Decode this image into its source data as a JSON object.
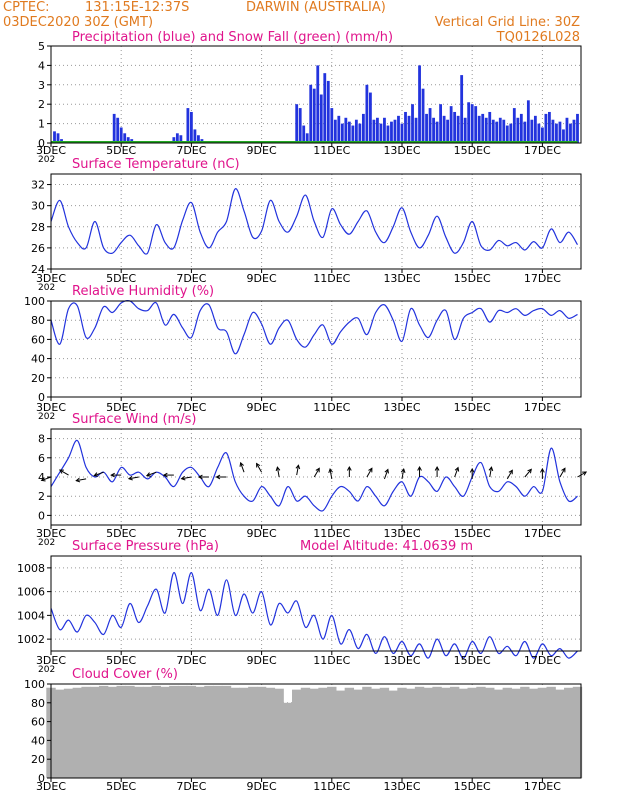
{
  "header": {
    "source": "CPTEC:",
    "coords": "131:15E-12:37S",
    "location": "DARWIN (AUSTRALIA)",
    "run": "03DEC2020 30Z (GMT)",
    "grid_note": "Vertical Grid Line: 30Z",
    "code": "TQ0126L028",
    "color": "#e07a1f"
  },
  "x_axis": {
    "domain": [
      3,
      18.1
    ],
    "tick_labels": [
      {
        "label": "3DEC",
        "day": 3
      },
      {
        "label": "5DEC",
        "day": 5
      },
      {
        "label": "7DEC",
        "day": 7
      },
      {
        "label": "9DEC",
        "day": 9
      },
      {
        "label": "11DEC",
        "day": 11
      },
      {
        "label": "13DEC",
        "day": 13
      },
      {
        "label": "15DEC",
        "day": 15
      },
      {
        "label": "17DEC",
        "day": 17
      }
    ],
    "year_fragment": "202"
  },
  "colors": {
    "title": "#e0148c",
    "line": "#2233dd",
    "bar": "#2233dd",
    "snow": "#22aa22",
    "cloud": "#b0b0b0",
    "grid": "#999999"
  },
  "chart_data": [
    {
      "id": "precip",
      "type": "bar",
      "title": "Precipitation (blue) and Snow Fall (green) (mm/h)",
      "ylim": [
        0,
        5
      ],
      "yticks": [
        0,
        1,
        2,
        3,
        4,
        5
      ],
      "series": [
        {
          "name": "Precipitation",
          "x": [
            3.1,
            3.2,
            3.3,
            4.4,
            4.8,
            4.9,
            5.0,
            5.1,
            5.2,
            5.3,
            6.5,
            6.6,
            6.7,
            6.9,
            7.0,
            7.1,
            7.2,
            7.3,
            10.0,
            10.1,
            10.2,
            10.3,
            10.4,
            10.5,
            10.6,
            10.7,
            10.8,
            10.9,
            11.0,
            11.1,
            11.2,
            11.3,
            11.4,
            11.5,
            11.6,
            11.7,
            11.8,
            11.9,
            12.0,
            12.1,
            12.2,
            12.3,
            12.4,
            12.5,
            12.6,
            12.7,
            12.8,
            12.9,
            13.0,
            13.1,
            13.2,
            13.3,
            13.4,
            13.5,
            13.6,
            13.7,
            13.8,
            13.9,
            14.0,
            14.1,
            14.2,
            14.3,
            14.4,
            14.5,
            14.6,
            14.7,
            14.8,
            14.9,
            15.0,
            15.1,
            15.2,
            15.3,
            15.4,
            15.5,
            15.6,
            15.7,
            15.8,
            15.9,
            16.0,
            16.1,
            16.2,
            16.3,
            16.4,
            16.5,
            16.6,
            16.7,
            16.8,
            16.9,
            17.0,
            17.1,
            17.2,
            17.3,
            17.4,
            17.5,
            17.6,
            17.7,
            17.8,
            17.9,
            18.0
          ],
          "values": [
            0.6,
            0.5,
            0.2,
            0.1,
            1.5,
            1.3,
            0.8,
            0.5,
            0.3,
            0.2,
            0.3,
            0.5,
            0.4,
            1.8,
            1.6,
            0.7,
            0.4,
            0.2,
            2.0,
            1.8,
            0.9,
            0.5,
            3.0,
            2.8,
            4.0,
            2.5,
            3.6,
            3.2,
            1.8,
            1.2,
            1.4,
            1.0,
            1.3,
            1.1,
            0.9,
            1.2,
            1.0,
            1.5,
            3.0,
            2.6,
            1.2,
            1.3,
            1.0,
            1.3,
            0.9,
            1.1,
            1.2,
            1.4,
            1.0,
            1.6,
            1.4,
            2.0,
            1.3,
            4.0,
            2.8,
            1.5,
            1.8,
            1.3,
            1.1,
            2.0,
            1.4,
            1.2,
            1.9,
            1.6,
            1.4,
            3.5,
            1.3,
            2.1,
            2.0,
            1.9,
            1.4,
            1.5,
            1.3,
            1.6,
            1.2,
            1.1,
            1.3,
            1.2,
            0.9,
            1.0,
            1.8,
            1.3,
            1.5,
            1.1,
            2.2,
            1.2,
            1.4,
            1.0,
            0.8,
            1.5,
            1.6,
            1.2,
            1.0,
            1.1,
            0.7,
            1.3,
            1.0,
            1.2,
            1.5
          ]
        },
        {
          "name": "Snow Fall",
          "x": [
            3,
            18
          ],
          "values": [
            0,
            0
          ]
        }
      ]
    },
    {
      "id": "temp",
      "type": "line",
      "title": "Surface Temperature (nC)",
      "ylim": [
        24,
        33
      ],
      "yticks": [
        24,
        26,
        28,
        30,
        32
      ],
      "series": [
        {
          "name": "Temperature",
          "x": [
            3,
            3.25,
            3.5,
            3.75,
            4,
            4.25,
            4.5,
            4.75,
            5,
            5.25,
            5.5,
            5.75,
            6,
            6.25,
            6.5,
            6.75,
            7,
            7.25,
            7.5,
            7.75,
            8,
            8.25,
            8.5,
            8.75,
            9,
            9.25,
            9.5,
            9.75,
            10,
            10.25,
            10.5,
            10.75,
            11,
            11.25,
            11.5,
            11.75,
            12,
            12.25,
            12.5,
            12.75,
            13,
            13.25,
            13.5,
            13.75,
            14,
            14.25,
            14.5,
            14.75,
            15,
            15.25,
            15.5,
            15.75,
            16,
            16.25,
            16.5,
            16.75,
            17,
            17.25,
            17.5,
            17.75,
            18
          ],
          "values": [
            28.5,
            30.5,
            28,
            26.5,
            26,
            28.5,
            26,
            25.5,
            26.5,
            27.2,
            26.2,
            25.5,
            28.2,
            26.5,
            26,
            28.6,
            30.3,
            27.5,
            26,
            27.5,
            28.5,
            31.6,
            29.5,
            27,
            27.6,
            30.5,
            28.5,
            27.5,
            29,
            31,
            28.5,
            27,
            29.7,
            28.2,
            27.3,
            28.5,
            29.5,
            27.5,
            26.5,
            28,
            29.8,
            27.5,
            26,
            27.2,
            29,
            27,
            25.5,
            26.5,
            28.5,
            26.2,
            25.8,
            26.7,
            26.2,
            26.5,
            25.8,
            26.6,
            26,
            27.8,
            26.5,
            27.5,
            26.3
          ]
        }
      ]
    },
    {
      "id": "rh",
      "type": "line",
      "title": "Relative Humidity (%)",
      "ylim": [
        0,
        100
      ],
      "yticks": [
        0,
        20,
        40,
        60,
        80,
        100
      ],
      "series": [
        {
          "name": "Relative Humidity",
          "x": [
            3,
            3.25,
            3.5,
            3.75,
            4,
            4.25,
            4.5,
            4.75,
            5,
            5.25,
            5.5,
            5.75,
            6,
            6.25,
            6.5,
            6.75,
            7,
            7.25,
            7.5,
            7.75,
            8,
            8.25,
            8.5,
            8.75,
            9,
            9.25,
            9.5,
            9.75,
            10,
            10.25,
            10.5,
            10.75,
            11,
            11.25,
            11.5,
            11.75,
            12,
            12.25,
            12.5,
            12.75,
            13,
            13.25,
            13.5,
            13.75,
            14,
            14.25,
            14.5,
            14.75,
            15,
            15.25,
            15.5,
            15.75,
            16,
            16.25,
            16.5,
            16.75,
            17,
            17.25,
            17.5,
            17.75,
            18
          ],
          "values": [
            80,
            55,
            92,
            95,
            62,
            72,
            94,
            88,
            98,
            100,
            92,
            90,
            98,
            75,
            86,
            72,
            62,
            90,
            96,
            72,
            68,
            45,
            65,
            88,
            76,
            55,
            72,
            80,
            60,
            52,
            65,
            75,
            55,
            68,
            78,
            82,
            65,
            88,
            96,
            80,
            58,
            92,
            75,
            62,
            80,
            90,
            60,
            82,
            88,
            92,
            78,
            90,
            88,
            92,
            85,
            90,
            92,
            85,
            90,
            82,
            86
          ]
        }
      ]
    },
    {
      "id": "wind",
      "type": "line",
      "title": "Surface Wind (m/s)",
      "ylim": [
        -1,
        9
      ],
      "yticks": [
        0,
        2,
        4,
        6,
        8
      ],
      "series": [
        {
          "name": "Wind speed",
          "x": [
            3,
            3.25,
            3.5,
            3.75,
            4,
            4.25,
            4.5,
            4.75,
            5,
            5.25,
            5.5,
            5.75,
            6,
            6.25,
            6.5,
            6.75,
            7,
            7.25,
            7.5,
            7.75,
            8,
            8.25,
            8.5,
            8.75,
            9,
            9.25,
            9.5,
            9.75,
            10,
            10.25,
            10.5,
            10.75,
            11,
            11.25,
            11.5,
            11.75,
            12,
            12.25,
            12.5,
            12.75,
            13,
            13.25,
            13.5,
            13.75,
            14,
            14.25,
            14.5,
            14.75,
            15,
            15.25,
            15.5,
            15.75,
            16,
            16.25,
            16.5,
            16.75,
            17,
            17.25,
            17.5,
            17.75,
            18
          ],
          "values": [
            3,
            4.5,
            6,
            7.8,
            5,
            4,
            4.5,
            3.5,
            5,
            4.2,
            4.5,
            3.8,
            4.5,
            4,
            3,
            4.5,
            5,
            4,
            3,
            5,
            6.5,
            3.5,
            2,
            1.5,
            3,
            2,
            1,
            3,
            1.5,
            2,
            1,
            0.5,
            2,
            3,
            2.5,
            1.5,
            3,
            2,
            1,
            2.5,
            3.5,
            2,
            4,
            3.5,
            2.5,
            4,
            3,
            2,
            4,
            5.5,
            3,
            2.5,
            3.5,
            3,
            2,
            3,
            2.5,
            7,
            3.5,
            1.5,
            2
          ]
        }
      ]
    },
    {
      "id": "press",
      "type": "line",
      "title": "Surface Pressure (hPa)",
      "annotation": "Model Altitude: 41.0639 m",
      "ylim": [
        1001,
        1009
      ],
      "yticks": [
        1002,
        1004,
        1006,
        1008
      ],
      "series": [
        {
          "name": "Pressure",
          "x": [
            3,
            3.25,
            3.5,
            3.75,
            4,
            4.25,
            4.5,
            4.75,
            5,
            5.25,
            5.5,
            5.75,
            6,
            6.25,
            6.5,
            6.75,
            7,
            7.25,
            7.5,
            7.75,
            8,
            8.25,
            8.5,
            8.75,
            9,
            9.25,
            9.5,
            9.75,
            10,
            10.25,
            10.5,
            10.75,
            11,
            11.25,
            11.5,
            11.75,
            12,
            12.25,
            12.5,
            12.75,
            13,
            13.25,
            13.5,
            13.75,
            14,
            14.25,
            14.5,
            14.75,
            15,
            15.25,
            15.5,
            15.75,
            16,
            16.25,
            16.5,
            16.75,
            17,
            17.25,
            17.5,
            17.75,
            18
          ],
          "values": [
            1004.6,
            1002.8,
            1003.6,
            1002.6,
            1004,
            1003.4,
            1002.4,
            1004,
            1003,
            1005,
            1003.4,
            1004.8,
            1006.2,
            1004.2,
            1007.6,
            1005,
            1007.6,
            1004.4,
            1006.2,
            1004,
            1007,
            1004,
            1005.8,
            1004.2,
            1006,
            1003.2,
            1005,
            1004.2,
            1005.2,
            1003,
            1004,
            1002,
            1004,
            1001.6,
            1002.8,
            1001.2,
            1002.4,
            1000.8,
            1002.2,
            1000.8,
            1001.8,
            1000.6,
            1001.6,
            1000.4,
            1002,
            1000.6,
            1001.6,
            1000.4,
            1001.8,
            1000.8,
            1002.2,
            1000.8,
            1001.4,
            1000.6,
            1001.8,
            1000.4,
            1001.6,
            1000.6,
            1001.2,
            1000.4,
            1001
          ]
        }
      ]
    },
    {
      "id": "cloud",
      "type": "bar",
      "title": "Cloud Cover (%)",
      "ylim": [
        0,
        100
      ],
      "yticks": [
        0,
        20,
        40,
        60,
        80,
        100
      ],
      "series": [
        {
          "name": "Cloud Cover",
          "x": [
            3,
            3.25,
            3.5,
            3.75,
            4,
            4.25,
            4.5,
            4.75,
            5,
            5.25,
            5.5,
            5.75,
            6,
            6.25,
            6.5,
            6.75,
            7,
            7.25,
            7.5,
            7.75,
            8,
            8.25,
            8.5,
            8.75,
            9,
            9.25,
            9.5,
            9.75,
            10,
            10.25,
            10.5,
            10.75,
            11,
            11.25,
            11.5,
            11.75,
            12,
            12.25,
            12.5,
            12.75,
            13,
            13.25,
            13.5,
            13.75,
            14,
            14.25,
            14.5,
            14.75,
            15,
            15.25,
            15.5,
            15.75,
            16,
            16.25,
            16.5,
            16.75,
            17,
            17.25,
            17.5,
            17.75,
            18
          ],
          "values": [
            96,
            94,
            95,
            96,
            97,
            97,
            98,
            97,
            98,
            98,
            97,
            97,
            98,
            97,
            98,
            98,
            98,
            97,
            98,
            98,
            98,
            96,
            96,
            97,
            97,
            96,
            95,
            80,
            94,
            96,
            95,
            96,
            97,
            93,
            96,
            94,
            97,
            95,
            96,
            93,
            96,
            95,
            97,
            96,
            97,
            96,
            97,
            95,
            96,
            97,
            96,
            94,
            96,
            95,
            97,
            95,
            96,
            97,
            94,
            96,
            97
          ]
        }
      ]
    }
  ],
  "wind_vectors": {
    "x": [
      3,
      3.5,
      4,
      4.5,
      5,
      5.5,
      6,
      6.5,
      7,
      7.5,
      8,
      8.5,
      9,
      9.5,
      10,
      10.5,
      11,
      11.5,
      12,
      12.5,
      13,
      13.5,
      14,
      14.5,
      15,
      15.5,
      16,
      16.5,
      17,
      17.5,
      18
    ],
    "y": [
      4,
      4.2,
      3.8,
      4.5,
      4.2,
      4,
      4.5,
      4.2,
      4,
      4,
      4,
      4.5,
      4.5,
      4,
      4.2,
      4,
      3.8,
      4,
      4,
      3.8,
      3.8,
      4,
      4,
      4,
      3.8,
      4,
      3.8,
      4,
      3.8,
      4,
      4
    ],
    "angle": [
      200,
      150,
      190,
      200,
      180,
      190,
      200,
      180,
      190,
      180,
      180,
      110,
      120,
      100,
      80,
      60,
      100,
      90,
      60,
      70,
      80,
      90,
      90,
      70,
      90,
      80,
      60,
      50,
      90,
      60,
      30
    ]
  }
}
